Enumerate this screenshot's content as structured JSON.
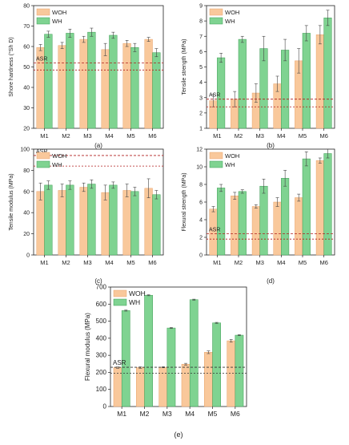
{
  "colors": {
    "woh": "#f9c89b",
    "wh": "#7fd391",
    "woh_edge": "#e8a36c",
    "wh_edge": "#3f9c55",
    "asr": "#b01e1e",
    "axis": "#222222"
  },
  "chart_data": [
    {
      "id": "a",
      "type": "bar",
      "panel_label": "(a)",
      "categories": [
        "M1",
        "M2",
        "M3",
        "M4",
        "M5",
        "M6"
      ],
      "ylabel": "Shore hardness (°Sh D)",
      "xlabel": "",
      "ylim": [
        20,
        80
      ],
      "yticks": [
        20,
        30,
        40,
        50,
        60,
        70,
        80
      ],
      "series": [
        {
          "name": "WOH",
          "values": [
            59.5,
            60.5,
            63.5,
            58.5,
            61.5,
            63.5
          ],
          "errors": [
            1.5,
            1.5,
            1.5,
            3,
            1.5,
            1
          ]
        },
        {
          "name": "WH",
          "values": [
            66,
            66.5,
            67,
            65.5,
            59.5,
            57
          ],
          "errors": [
            1.5,
            2,
            2,
            1.5,
            2,
            2
          ]
        }
      ],
      "asr_label": "ASR",
      "asr_lines": [
        52,
        48.5
      ],
      "legend": "top-left"
    },
    {
      "id": "b",
      "type": "bar",
      "panel_label": "(b)",
      "categories": [
        "M1",
        "M2",
        "M3",
        "M4",
        "M5",
        "M6"
      ],
      "ylabel": "Tensile strength (MPa)",
      "xlabel": "",
      "ylim": [
        1,
        9
      ],
      "yticks": [
        1,
        2,
        3,
        4,
        5,
        6,
        7,
        8,
        9
      ],
      "series": [
        {
          "name": "WOH",
          "values": [
            2.8,
            2.9,
            3.3,
            3.9,
            5.4,
            7.1
          ],
          "errors": [
            0.4,
            0.5,
            0.6,
            0.5,
            0.8,
            0.6
          ]
        },
        {
          "name": "WH",
          "values": [
            5.6,
            6.8,
            6.2,
            6.1,
            7.2,
            8.2
          ],
          "errors": [
            0.3,
            0.2,
            0.8,
            0.7,
            0.5,
            0.5
          ]
        }
      ],
      "asr_label": "ASR",
      "asr_lines": [
        2.9,
        2.4
      ],
      "legend": "top-left"
    },
    {
      "id": "c",
      "type": "bar",
      "panel_label": "(c)",
      "categories": [
        "M1",
        "M2",
        "M3",
        "M4",
        "M5",
        "M6"
      ],
      "ylabel": "Tensile modulus (MPa)",
      "xlabel": "",
      "ylim": [
        0,
        100
      ],
      "yticks": [
        0,
        20,
        40,
        60,
        80,
        100
      ],
      "series": [
        {
          "name": "WOH",
          "values": [
            60,
            61,
            64,
            59,
            61,
            63
          ],
          "errors": [
            8,
            6,
            4,
            7,
            6,
            9
          ]
        },
        {
          "name": "WH",
          "values": [
            66,
            66,
            67,
            66,
            60,
            57
          ],
          "errors": [
            4,
            4,
            4,
            3,
            4,
            4
          ]
        }
      ],
      "asr_label": "ASR",
      "asr_lines": [
        94,
        84
      ],
      "legend": "top-left"
    },
    {
      "id": "d",
      "type": "bar",
      "panel_label": "(d)",
      "categories": [
        "M1",
        "M2",
        "M3",
        "M4",
        "M5",
        "M6"
      ],
      "ylabel": "Flexural strength (MPa)",
      "xlabel": "",
      "ylim": [
        0,
        12
      ],
      "yticks": [
        0,
        2,
        4,
        6,
        8,
        10,
        12
      ],
      "series": [
        {
          "name": "WOH",
          "values": [
            5.2,
            6.7,
            5.5,
            6.0,
            6.5,
            10.7
          ],
          "errors": [
            0.3,
            0.4,
            0.2,
            0.5,
            0.4,
            0.3
          ]
        },
        {
          "name": "WH",
          "values": [
            7.6,
            7.2,
            7.8,
            8.7,
            10.9,
            11.5
          ],
          "errors": [
            0.4,
            0.2,
            0.8,
            0.9,
            0.8,
            0.5
          ]
        }
      ],
      "asr_label": "ASR",
      "asr_lines": [
        2.4,
        1.8
      ],
      "legend": "top-left"
    },
    {
      "id": "e",
      "type": "bar",
      "panel_label": "(e)",
      "categories": [
        "M1",
        "M2",
        "M3",
        "M4",
        "M5",
        "M6"
      ],
      "ylabel": "Flexural modulus (MPa)",
      "xlabel": "",
      "ylim": [
        0,
        700
      ],
      "yticks": [
        0,
        100,
        200,
        300,
        400,
        500,
        600,
        700
      ],
      "series": [
        {
          "name": "WOH",
          "values": [
            228,
            228,
            230,
            248,
            318,
            385
          ],
          "errors": [
            4,
            4,
            3,
            5,
            8,
            8
          ]
        },
        {
          "name": "WH",
          "values": [
            562,
            652,
            460,
            626,
            490,
            418
          ],
          "errors": [
            3,
            3,
            3,
            3,
            3,
            3
          ]
        }
      ],
      "asr_label": "ASR",
      "asr_lines": [
        230,
        195
      ],
      "legend": "top-left"
    }
  ]
}
